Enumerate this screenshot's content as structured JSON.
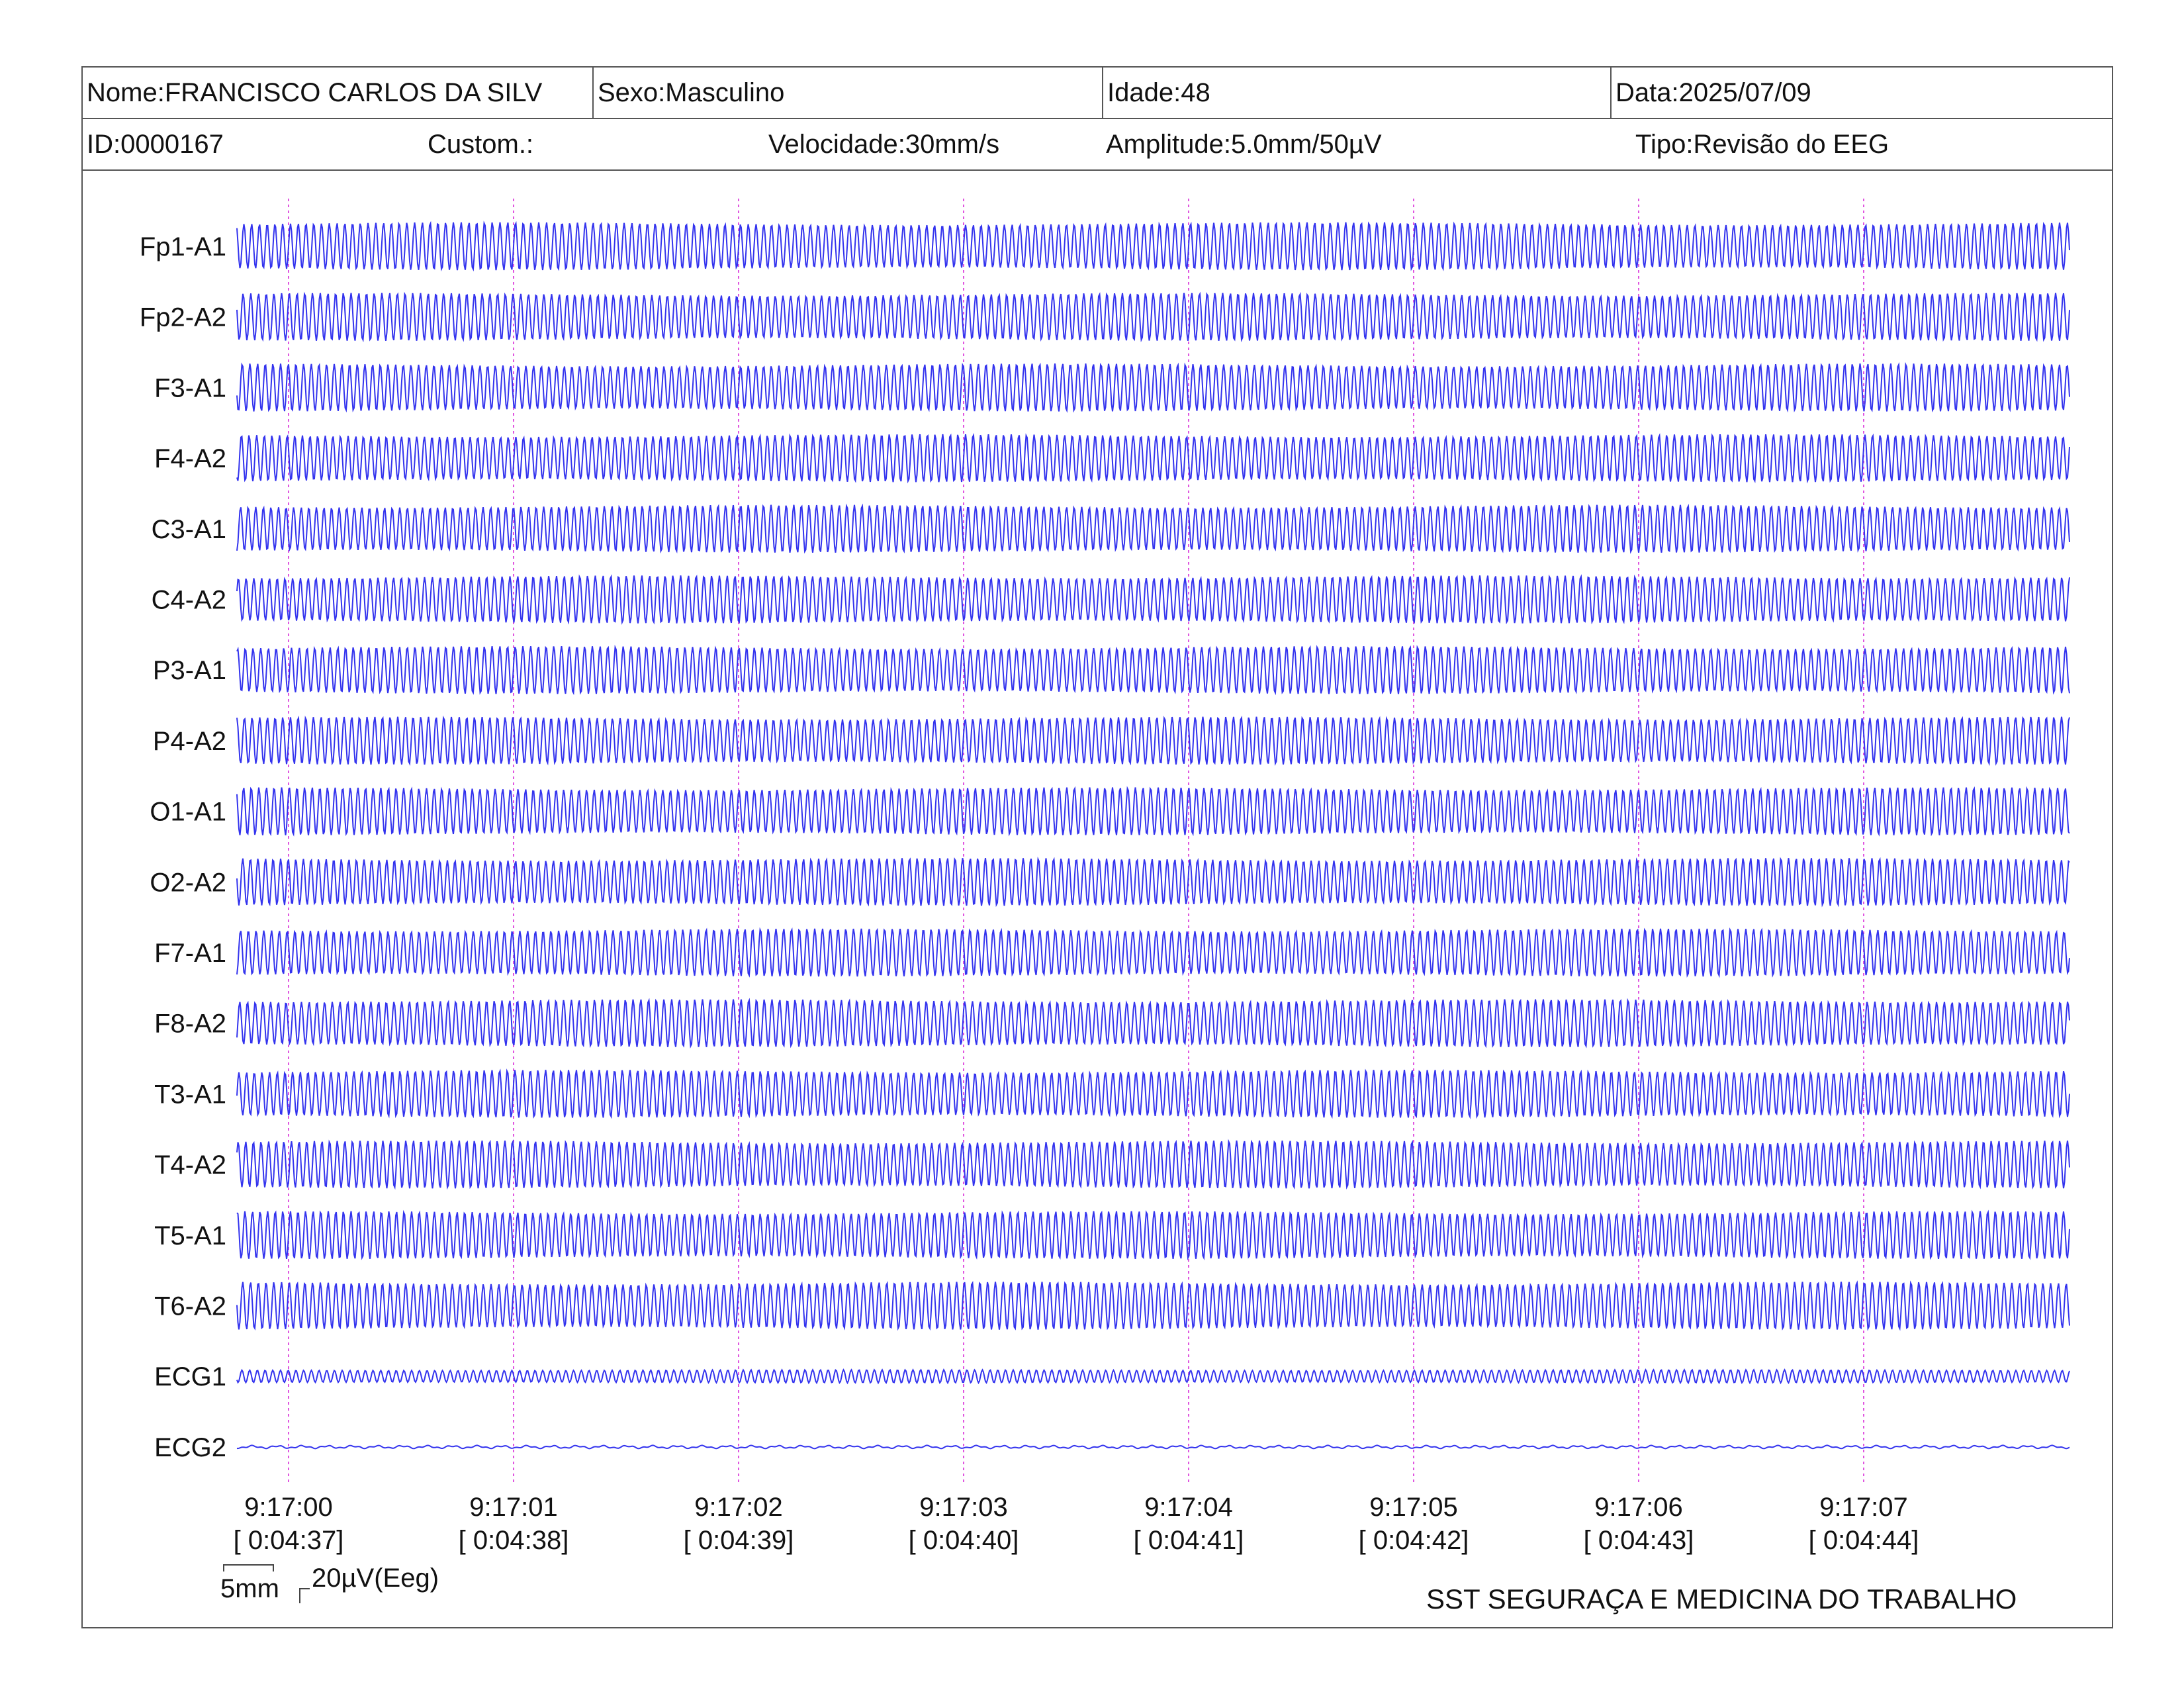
{
  "header": {
    "name": "Nome:FRANCISCO CARLOS DA SILV",
    "sex": "Sexo:Masculino",
    "age": "Idade:48",
    "date": "Data:2025/07/09",
    "id": "ID:0000167",
    "custom": "Custom.:",
    "speed": "Velocidade:30mm/s",
    "amplitude": "Amplitude:5.0mm/50µV",
    "type": "Tipo:Revisão do EEG"
  },
  "scale": {
    "time_label": "5mm",
    "amp_label": "20µV(Eeg)"
  },
  "footer": {
    "org": "SST SEGURAÇA E MEDICINA DO TRABALHO"
  },
  "colors": {
    "trace": "#3333ee",
    "marker": "#e055e0",
    "border": "#555555"
  },
  "chart_data": {
    "type": "line",
    "channels": [
      "Fp1-A1",
      "Fp2-A2",
      "F3-A1",
      "F4-A2",
      "C3-A1",
      "C4-A2",
      "P3-A1",
      "P4-A2",
      "O1-A1",
      "O2-A2",
      "F7-A1",
      "F8-A2",
      "T3-A1",
      "T4-A2",
      "T5-A1",
      "T6-A2",
      "ECG1",
      "ECG2"
    ],
    "time_ticks": [
      {
        "clock": "9:17:00",
        "elapsed": "[ 0:04:37]"
      },
      {
        "clock": "9:17:01",
        "elapsed": "[ 0:04:38]"
      },
      {
        "clock": "9:17:02",
        "elapsed": "[ 0:04:39]"
      },
      {
        "clock": "9:17:03",
        "elapsed": "[ 0:04:40]"
      },
      {
        "clock": "9:17:04",
        "elapsed": "[ 0:04:41]"
      },
      {
        "clock": "9:17:05",
        "elapsed": "[ 0:04:42]"
      },
      {
        "clock": "9:17:06",
        "elapsed": "[ 0:04:43]"
      },
      {
        "clock": "9:17:07",
        "elapsed": "[ 0:04:44]"
      }
    ],
    "x_range_seconds": [
      -0.22,
      7.9
    ],
    "approx_frequency_hz": 29,
    "amplitude_uv": [
      110,
      110,
      110,
      110,
      110,
      110,
      110,
      110,
      110,
      110,
      110,
      110,
      110,
      110,
      110,
      110,
      30,
      5
    ]
  }
}
